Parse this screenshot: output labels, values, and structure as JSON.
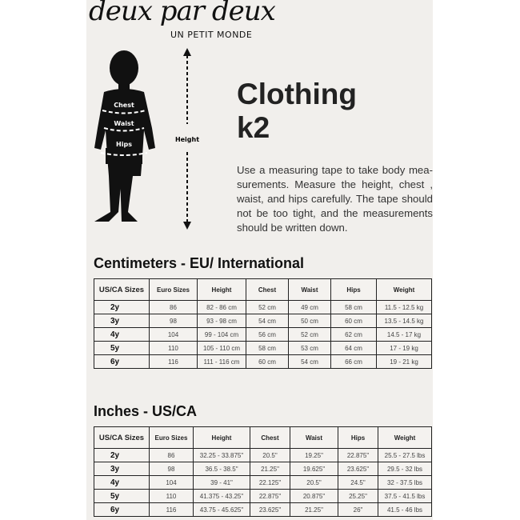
{
  "logo": {
    "brand": "deux par deux",
    "tagline": "UN PETIT MONDE"
  },
  "figure": {
    "labels": {
      "chest": "Chest",
      "waist": "Waist",
      "hips": "Hips",
      "height": "Height"
    }
  },
  "title": {
    "line1": "Clothing",
    "line2": "k2"
  },
  "description": "Use a measuring tape to take body mea-surements. Measure the height, chest , waist, and hips carefully. The tape should not be too tight, and the measurements should be written down.",
  "cm_table": {
    "heading": "Centimeters - EU/ International",
    "columns": [
      "US/CA Sizes",
      "Euro Sizes",
      "Height",
      "Chest",
      "Waist",
      "Hips",
      "Weight"
    ],
    "rows": [
      [
        "2y",
        "86",
        "82 - 86 cm",
        "52 cm",
        "49 cm",
        "58 cm",
        "11.5 - 12.5 kg"
      ],
      [
        "3y",
        "98",
        "93 - 98 cm",
        "54 cm",
        "50 cm",
        "60 cm",
        "13.5 - 14.5 kg"
      ],
      [
        "4y",
        "104",
        "99 - 104 cm",
        "56 cm",
        "52 cm",
        "62 cm",
        "14.5 - 17 kg"
      ],
      [
        "5y",
        "110",
        "105 - 110 cm",
        "58 cm",
        "53 cm",
        "64 cm",
        "17 - 19 kg"
      ],
      [
        "6y",
        "116",
        "111 - 116 cm",
        "60 cm",
        "54 cm",
        "66 cm",
        "19 - 21 kg"
      ]
    ]
  },
  "in_table": {
    "heading": "Inches - US/CA",
    "columns": [
      "US/CA Sizes",
      "Euro Sizes",
      "Height",
      "Chest",
      "Waist",
      "Hips",
      "Weight"
    ],
    "rows": [
      [
        "2y",
        "86",
        "32.25 - 33.875\"",
        "20.5\"",
        "19.25\"",
        "22.875\"",
        "25.5 - 27.5 lbs"
      ],
      [
        "3y",
        "98",
        "36.5 - 38.5\"",
        "21.25\"",
        "19.625\"",
        "23.625\"",
        "29.5 - 32 lbs"
      ],
      [
        "4y",
        "104",
        "39 - 41\"",
        "22.125\"",
        "20.5\"",
        "24.5\"",
        "32 - 37.5 lbs"
      ],
      [
        "5y",
        "110",
        "41.375 - 43.25\"",
        "22.875\"",
        "20.875\"",
        "25.25\"",
        "37.5 - 41.5 lbs"
      ],
      [
        "6y",
        "116",
        "43.75 - 45.625\"",
        "23.625\"",
        "21.25\"",
        "26\"",
        "41.5 - 46 lbs"
      ]
    ]
  }
}
